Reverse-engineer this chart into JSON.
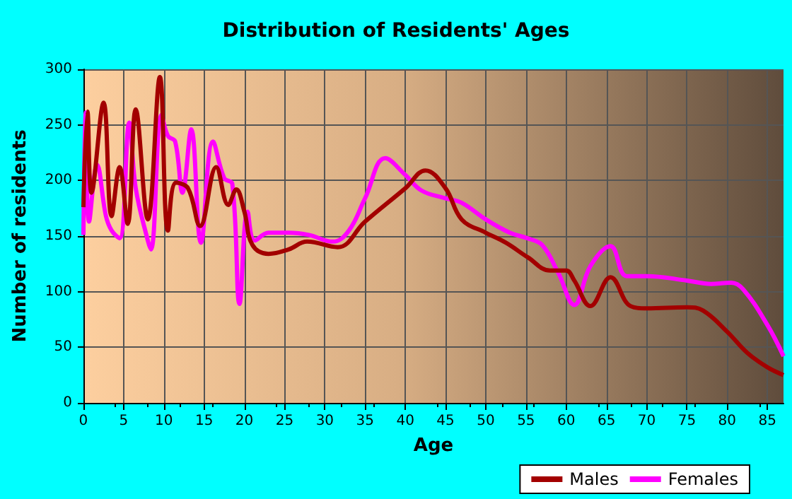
{
  "chart_data": {
    "type": "line",
    "title": "Distribution of Residents' Ages",
    "xlabel": "Age",
    "ylabel": "Number of residents",
    "xlim": [
      0,
      87
    ],
    "xticks": [
      0,
      5,
      10,
      15,
      20,
      25,
      30,
      35,
      40,
      45,
      50,
      55,
      60,
      65,
      70,
      75,
      80,
      85
    ],
    "ylim": [
      0,
      300
    ],
    "yticks": [
      0,
      50,
      100,
      150,
      200,
      250,
      300
    ],
    "grid": true,
    "legend": "bottom right",
    "marker": "none",
    "line_style": "solid",
    "series": [
      {
        "name": "Males",
        "color": "#a30000",
        "x": [
          0,
          0.5,
          1,
          2.5,
          3.5,
          4.5,
          5.5,
          6.5,
          8,
          9.5,
          10.5,
          11.5,
          13,
          14.5,
          16.5,
          18,
          19,
          20,
          21,
          23,
          25.5,
          27.8,
          31.6,
          35,
          40,
          42.5,
          45,
          47,
          50,
          52.5,
          55.2,
          58,
          60,
          61,
          63,
          65.5,
          68,
          70,
          75,
          77,
          80,
          82.5,
          85,
          87
        ],
        "values": [
          176,
          262,
          189,
          270,
          168,
          212,
          161,
          264,
          165,
          293,
          155,
          198,
          193,
          159,
          212,
          178,
          192,
          172,
          142,
          134,
          138,
          145,
          140,
          163,
          193,
          209,
          193,
          165,
          153,
          144,
          131,
          119,
          119,
          110,
          87,
          113,
          87,
          85,
          86,
          83,
          64,
          45,
          32,
          25
        ]
      },
      {
        "name": "Females",
        "color": "#ff00ff",
        "x": [
          0,
          0.3,
          0.7,
          1.7,
          2.8,
          3.5,
          4.5,
          5.7,
          6.5,
          8,
          8.4,
          9.7,
          10.5,
          11.4,
          12.3,
          13.4,
          14.6,
          16.1,
          17.5,
          18.5,
          19.4,
          20.4,
          21.3,
          23,
          25.5,
          28,
          31,
          33,
          35,
          37.5,
          40,
          42,
          45,
          47,
          50,
          53,
          55.2,
          57,
          59,
          61,
          63,
          65.5,
          67.5,
          70,
          75,
          78,
          80.5,
          82,
          85,
          87
        ],
        "values": [
          151,
          261,
          163,
          214,
          168,
          155,
          148,
          252,
          193,
          146,
          138,
          259,
          240,
          235,
          189,
          246,
          144,
          235,
          202,
          197,
          89,
          172,
          146,
          153,
          153,
          151,
          145,
          155,
          184,
          220,
          205,
          191,
          184,
          180,
          165,
          153,
          148,
          142,
          117,
          88,
          123,
          141,
          114,
          114,
          110,
          107,
          108,
          102,
          70,
          42
        ]
      }
    ]
  }
}
